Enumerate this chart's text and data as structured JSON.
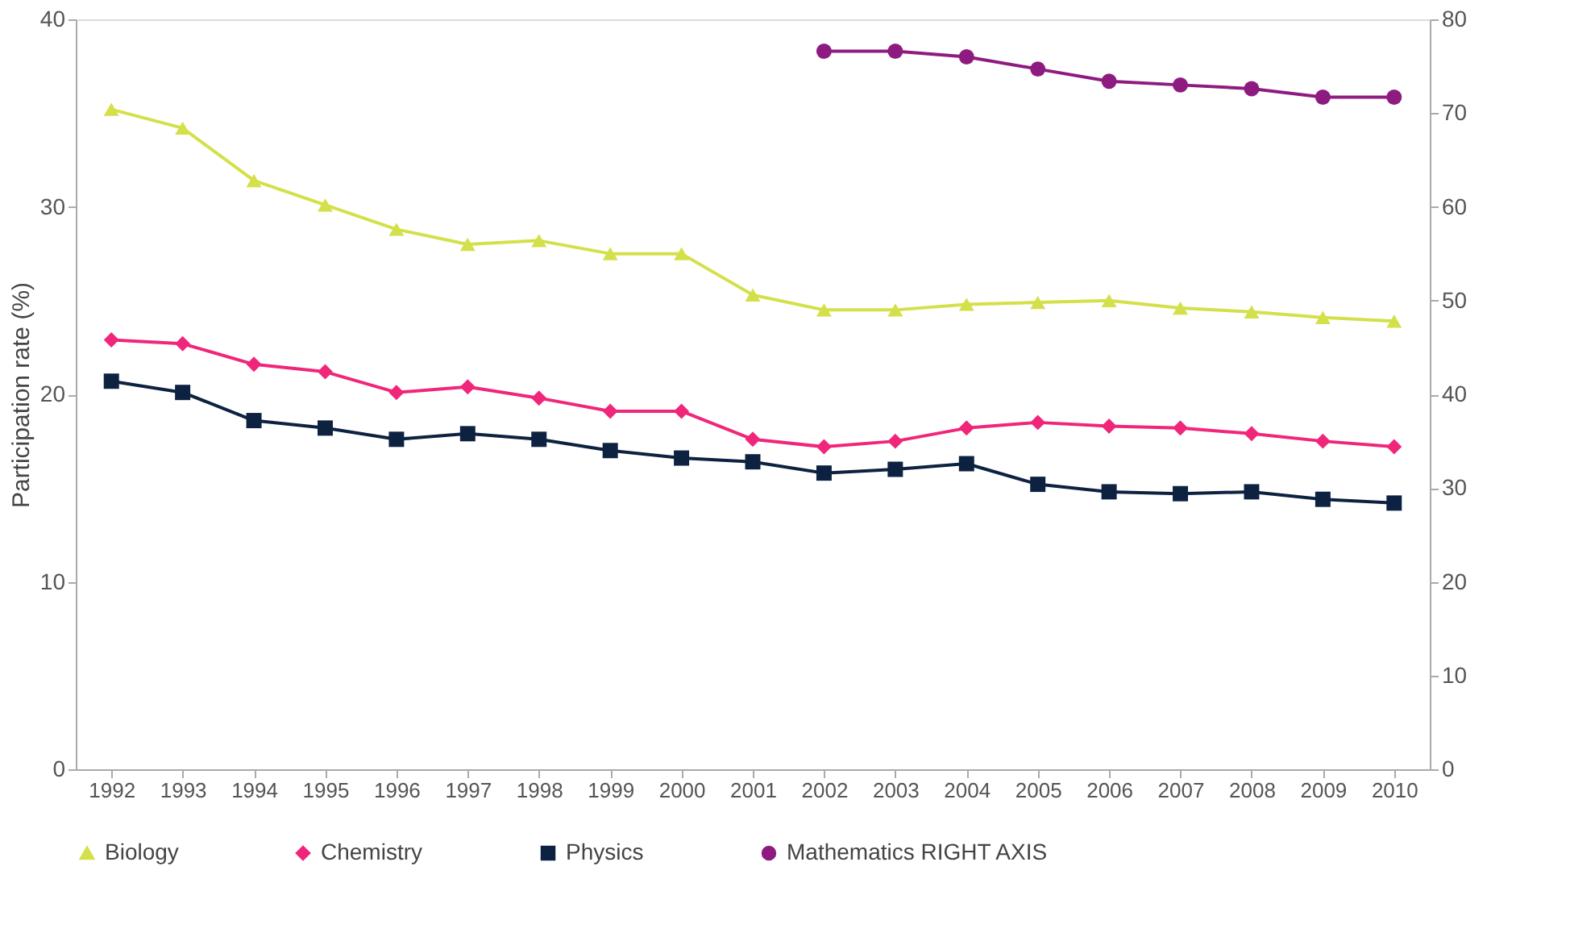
{
  "chart_data": {
    "type": "line",
    "categories": [
      "1992",
      "1993",
      "1994",
      "1995",
      "1996",
      "1997",
      "1998",
      "1999",
      "2000",
      "2001",
      "2002",
      "2003",
      "2004",
      "2005",
      "2006",
      "2007",
      "2008",
      "2009",
      "2010"
    ],
    "ylabel": "Participation rate (%)",
    "ylim": [
      0,
      40
    ],
    "yticks": [
      0,
      10,
      20,
      30,
      40
    ],
    "y2lim": [
      0,
      80
    ],
    "y2ticks": [
      0,
      10,
      20,
      30,
      40,
      50,
      60,
      70,
      80
    ],
    "grid": false,
    "legend": "bottom",
    "line_style": "solid",
    "series": [
      {
        "name": "Biology",
        "color": "#d4e04a",
        "marker": "triangle",
        "values": [
          35.2,
          34.2,
          31.4,
          30.1,
          28.8,
          28.0,
          28.2,
          27.5,
          27.5,
          25.3,
          24.5,
          24.5,
          24.8,
          24.9,
          25.0,
          24.6,
          24.4,
          24.1,
          23.9
        ]
      },
      {
        "name": "Chemistry",
        "color": "#f0267a",
        "marker": "diamond",
        "values": [
          22.9,
          22.7,
          21.6,
          21.2,
          20.1,
          20.4,
          19.8,
          19.1,
          19.1,
          17.6,
          17.2,
          17.5,
          18.2,
          18.5,
          18.3,
          18.2,
          17.9,
          17.5,
          17.2
        ]
      },
      {
        "name": "Physics",
        "color": "#0d2240",
        "marker": "square",
        "values": [
          20.7,
          20.1,
          18.6,
          18.2,
          17.6,
          17.9,
          17.6,
          17.0,
          16.6,
          16.4,
          15.8,
          16.0,
          16.3,
          15.2,
          14.8,
          14.7,
          14.8,
          14.4,
          14.2
        ]
      },
      {
        "name": "Mathematics RIGHT AXIS",
        "color": "#8e1b80",
        "marker": "circle",
        "axis": "y2",
        "values": [
          null,
          null,
          null,
          null,
          null,
          null,
          null,
          null,
          null,
          null,
          76.6,
          76.6,
          76.0,
          74.7,
          73.4,
          73.0,
          72.6,
          71.7,
          71.7
        ]
      }
    ]
  }
}
